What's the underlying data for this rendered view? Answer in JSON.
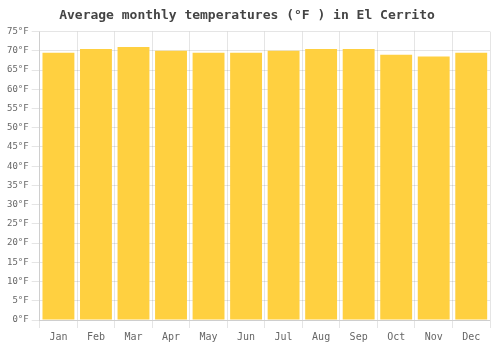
{
  "chart_data": {
    "type": "bar",
    "title": "Average monthly temperatures (°F ) in El Cerrito",
    "categories": [
      "Jan",
      "Feb",
      "Mar",
      "Apr",
      "May",
      "Jun",
      "Jul",
      "Aug",
      "Sep",
      "Oct",
      "Nov",
      "Dec"
    ],
    "values": [
      69.5,
      70.5,
      71.0,
      70.0,
      69.5,
      69.5,
      70.0,
      70.5,
      70.5,
      69.0,
      68.5,
      69.5
    ],
    "color": "#FFD040",
    "ylim": [
      0,
      75
    ],
    "yticks": [
      {
        "value": 0,
        "label": "0°F"
      },
      {
        "value": 5,
        "label": "5°F"
      },
      {
        "value": 10,
        "label": "10°F"
      },
      {
        "value": 15,
        "label": "15°F"
      },
      {
        "value": 20,
        "label": "20°F"
      },
      {
        "value": 25,
        "label": "25°F"
      },
      {
        "value": 30,
        "label": "30°F"
      },
      {
        "value": 35,
        "label": "35°F"
      },
      {
        "value": 40,
        "label": "40°F"
      },
      {
        "value": 45,
        "label": "45°F"
      },
      {
        "value": 50,
        "label": "50°F"
      },
      {
        "value": 55,
        "label": "55°F"
      },
      {
        "value": 60,
        "label": "60°F"
      },
      {
        "value": 65,
        "label": "65°F"
      },
      {
        "value": 70,
        "label": "70°F"
      },
      {
        "value": 75,
        "label": "75°F"
      }
    ],
    "grid": true
  }
}
